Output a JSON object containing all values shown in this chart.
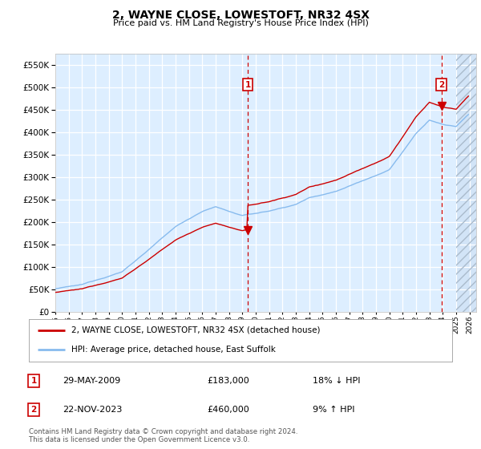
{
  "title": "2, WAYNE CLOSE, LOWESTOFT, NR32 4SX",
  "subtitle": "Price paid vs. HM Land Registry's House Price Index (HPI)",
  "ylim": [
    0,
    575000
  ],
  "yticks": [
    0,
    50000,
    100000,
    150000,
    200000,
    250000,
    300000,
    350000,
    400000,
    450000,
    500000,
    550000
  ],
  "xlim_start": 1995.0,
  "xlim_end": 2026.5,
  "plot_bg": "#ddeeff",
  "grid_color": "#ffffff",
  "hpi_color": "#88bbee",
  "price_color": "#cc0000",
  "transaction1_date": 2009.41,
  "transaction1_price": 183000,
  "transaction2_date": 2023.9,
  "transaction2_price": 460000,
  "legend_label1": "2, WAYNE CLOSE, LOWESTOFT, NR32 4SX (detached house)",
  "legend_label2": "HPI: Average price, detached house, East Suffolk",
  "table_rows": [
    {
      "num": "1",
      "date": "29-MAY-2009",
      "price": "£183,000",
      "hpi": "18% ↓ HPI"
    },
    {
      "num": "2",
      "date": "22-NOV-2023",
      "price": "£460,000",
      "hpi": "9% ↑ HPI"
    }
  ],
  "footer": "Contains HM Land Registry data © Crown copyright and database right 2024.\nThis data is licensed under the Open Government Licence v3.0."
}
